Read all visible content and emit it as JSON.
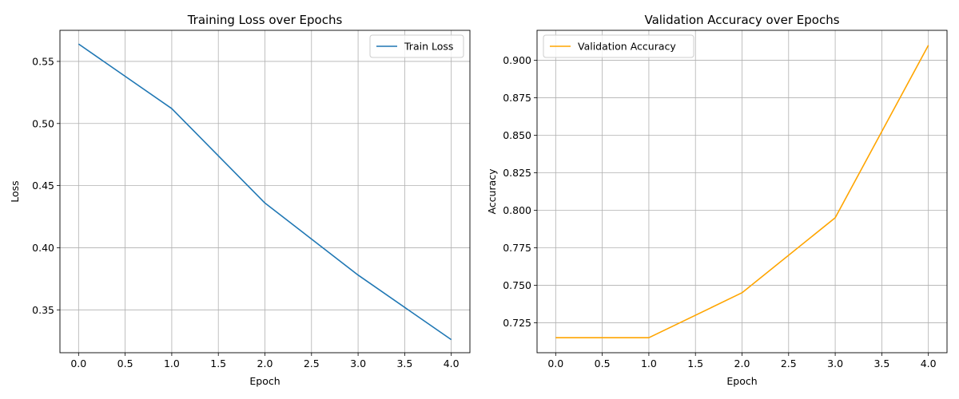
{
  "chart_data": [
    {
      "type": "line",
      "title": "Training Loss over Epochs",
      "xlabel": "Epoch",
      "ylabel": "Loss",
      "xlim": [
        -0.2,
        4.2
      ],
      "ylim": [
        0.3155,
        0.575
      ],
      "xticks": [
        0.0,
        0.5,
        1.0,
        1.5,
        2.0,
        2.5,
        3.0,
        3.5,
        4.0
      ],
      "yticks": [
        0.35,
        0.4,
        0.45,
        0.5,
        0.55
      ],
      "x": [
        0,
        1,
        2,
        3,
        4
      ],
      "grid": true,
      "legend": "upper right",
      "series": [
        {
          "name": "Train Loss",
          "color": "#1f77b4",
          "values": [
            0.564,
            0.512,
            0.436,
            0.378,
            0.326
          ]
        }
      ]
    },
    {
      "type": "line",
      "title": "Validation Accuracy over Epochs",
      "xlabel": "Epoch",
      "ylabel": "Accuracy",
      "xlim": [
        -0.2,
        4.2
      ],
      "ylim": [
        0.705,
        0.92
      ],
      "xticks": [
        0.0,
        0.5,
        1.0,
        1.5,
        2.0,
        2.5,
        3.0,
        3.5,
        4.0
      ],
      "yticks": [
        0.725,
        0.75,
        0.775,
        0.8,
        0.825,
        0.85,
        0.875,
        0.9
      ],
      "x": [
        0,
        1,
        2,
        3,
        4
      ],
      "grid": true,
      "legend": "upper left",
      "series": [
        {
          "name": "Validation Accuracy",
          "color": "#ffa500",
          "values": [
            0.715,
            0.715,
            0.745,
            0.795,
            0.91
          ]
        }
      ]
    }
  ]
}
